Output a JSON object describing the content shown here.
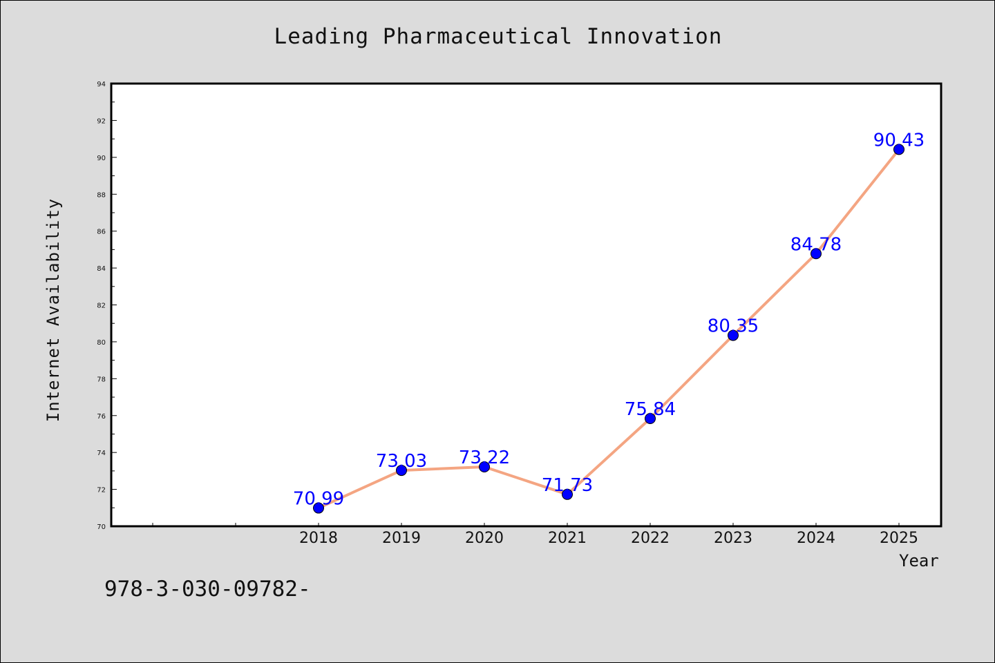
{
  "chart_data": {
    "type": "line",
    "title": "Leading Pharmaceutical Innovation",
    "xlabel": "Year",
    "ylabel": "Internet Availability",
    "footnote": "978-3-030-09782-",
    "x": [
      "2018",
      "2019",
      "2020",
      "2021",
      "2022",
      "2023",
      "2024",
      "2025"
    ],
    "series": [
      {
        "values": [
          70.99,
          73.03,
          73.22,
          71.73,
          75.84,
          80.35,
          84.78,
          90.43
        ],
        "labels": [
          "70.99",
          "73.03",
          "73.22",
          "71.73",
          "75.84",
          "80.35",
          "84.78",
          "90.43"
        ]
      }
    ],
    "ylim": [
      70,
      94
    ],
    "yticks": [
      "70",
      "72",
      "74",
      "76",
      "78",
      "80",
      "82",
      "84",
      "86",
      "88",
      "90",
      "92",
      "94"
    ],
    "grid": false,
    "line_color": "#f4a582",
    "marker_color": "#0000ff",
    "label_color": "#0000ff",
    "background_color": "#dcdcdc",
    "plot_background_color": "#ffffff"
  }
}
